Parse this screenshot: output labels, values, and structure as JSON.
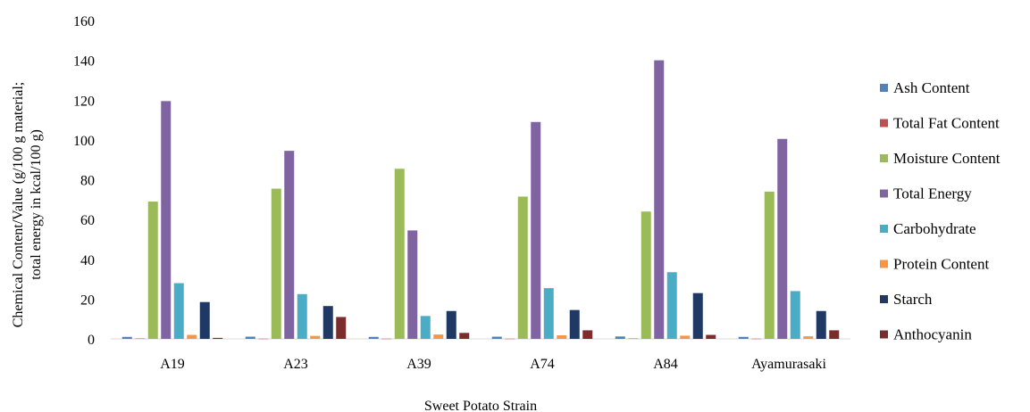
{
  "chart_data": {
    "type": "bar",
    "title": "",
    "xlabel": "Sweet Potato Strain",
    "ylabel_lines": [
      "Chemical Content/Value (g/100 g material;",
      "total energy in kcal/100 g)"
    ],
    "ylim": [
      0,
      160
    ],
    "yticks": [
      "0",
      "20",
      "40",
      "60",
      "80",
      "100",
      "120",
      "140",
      "160"
    ],
    "grid": false,
    "legend_position": "right",
    "categories": [
      "A19",
      "A23",
      "A39",
      "A74",
      "A84",
      "Ayamurasaki"
    ],
    "series": [
      {
        "name": "Ash Content",
        "color": "#4f81bd",
        "values": [
          1.0,
          1.1,
          1.0,
          1.1,
          1.2,
          1.0
        ]
      },
      {
        "name": "Total Fat Content",
        "color": "#c0504d",
        "values": [
          0.2,
          0.1,
          0.1,
          0.1,
          0.2,
          0.1
        ]
      },
      {
        "name": "Moisture Content",
        "color": "#9bbb59",
        "values": [
          69,
          75.5,
          85.5,
          71.5,
          64,
          74
        ]
      },
      {
        "name": "Total Energy",
        "color": "#8064a2",
        "values": [
          119.5,
          94.5,
          54.5,
          109,
          140,
          100.5
        ]
      },
      {
        "name": "Carbohydrate",
        "color": "#4bacc6",
        "values": [
          28,
          22.5,
          11.5,
          25.5,
          33.5,
          24
        ]
      },
      {
        "name": "Protein Content",
        "color": "#f79646",
        "values": [
          2.0,
          1.5,
          2.2,
          1.8,
          1.6,
          1.3
        ]
      },
      {
        "name": "Starch",
        "color": "#1f3864",
        "values": [
          18.5,
          16.5,
          14,
          14.5,
          23,
          14
        ]
      },
      {
        "name": "Anthocyanin",
        "color": "#7b2c2c",
        "values": [
          0.5,
          11,
          3,
          4.3,
          2,
          4.3
        ]
      }
    ]
  }
}
